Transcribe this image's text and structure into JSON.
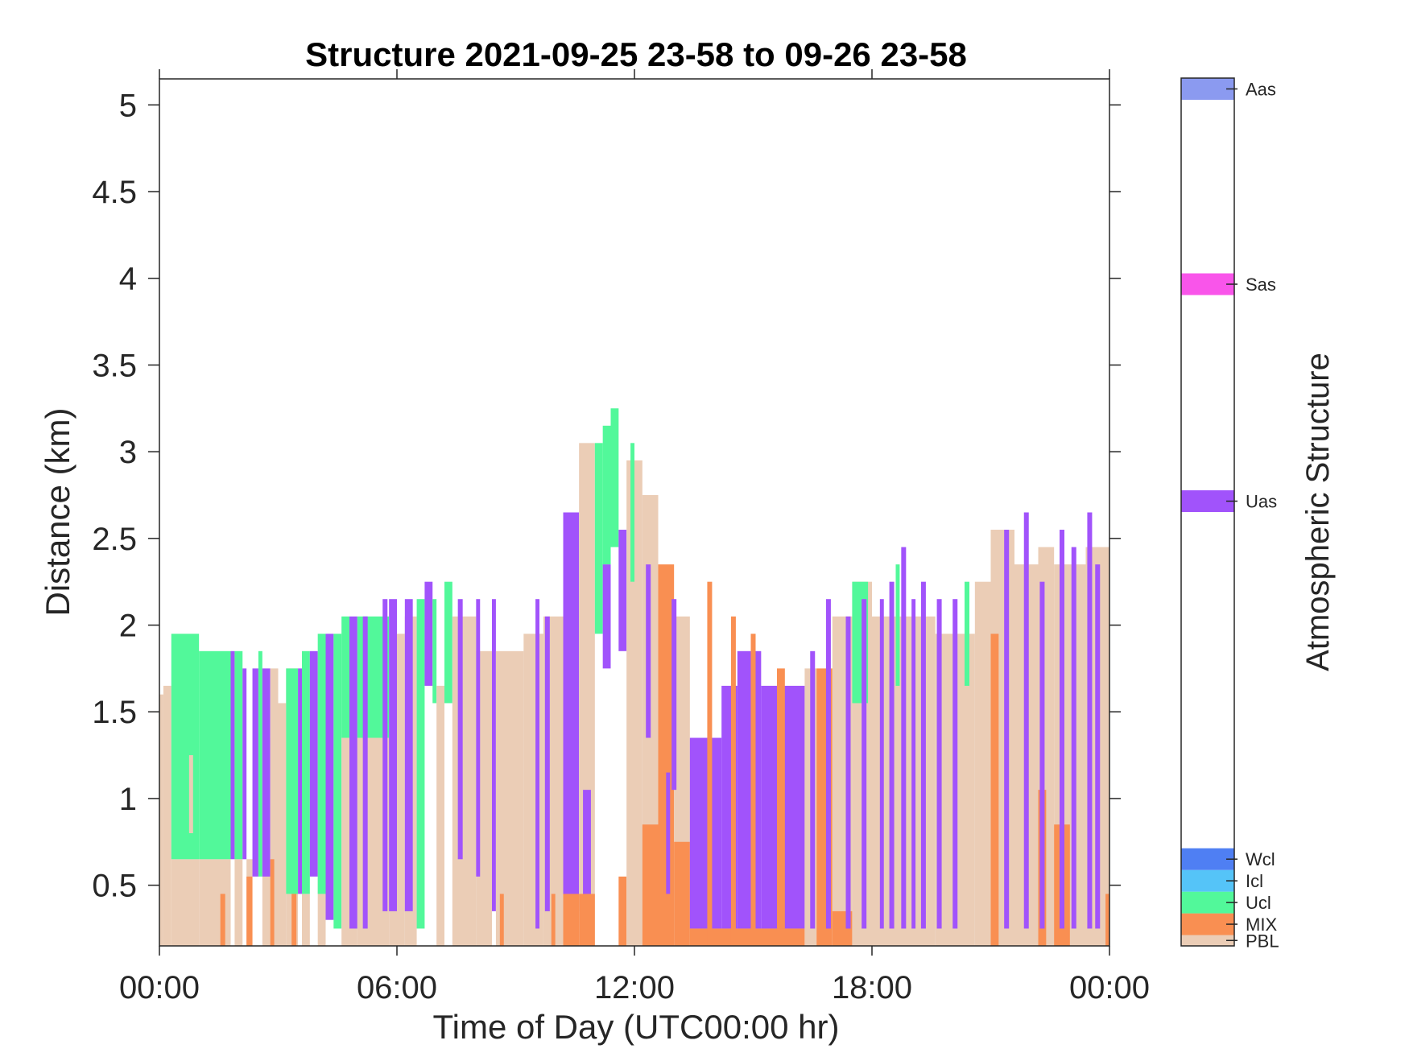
{
  "chart_data": {
    "type": "heatmap",
    "title": "Structure 2021-09-25 23-58 to 09-26 23-58",
    "xlabel": "Time of Day (UTC00:00 hr)",
    "ylabel": "Distance (km)",
    "colorbar_label": "Atmospheric Structure",
    "xlim_hours": [
      0,
      24
    ],
    "ylim_km": [
      0.15,
      5.15
    ],
    "x_ticks": [
      {
        "value": 0,
        "label": "00:00"
      },
      {
        "value": 6,
        "label": "06:00"
      },
      {
        "value": 12,
        "label": "12:00"
      },
      {
        "value": 18,
        "label": "18:00"
      },
      {
        "value": 24,
        "label": "00:00"
      }
    ],
    "y_ticks": [
      {
        "value": 0.5,
        "label": "0.5"
      },
      {
        "value": 1,
        "label": "1"
      },
      {
        "value": 1.5,
        "label": "1.5"
      },
      {
        "value": 2,
        "label": "2"
      },
      {
        "value": 2.5,
        "label": "2.5"
      },
      {
        "value": 3,
        "label": "3"
      },
      {
        "value": 3.5,
        "label": "3.5"
      },
      {
        "value": 4,
        "label": "4"
      },
      {
        "value": 4.5,
        "label": "4.5"
      },
      {
        "value": 5,
        "label": "5"
      }
    ],
    "classes": [
      {
        "code": "PBL",
        "color": "#ebcdb6",
        "legend_range": [
          0.0,
          0.1
        ]
      },
      {
        "code": "MIX",
        "color": "#f98f52",
        "legend_range": [
          0.1,
          0.3
        ]
      },
      {
        "code": "Ucl",
        "color": "#52f89a",
        "legend_range": [
          0.3,
          0.5
        ]
      },
      {
        "code": "Icl",
        "color": "#55c4f8",
        "legend_range": [
          0.5,
          0.7
        ]
      },
      {
        "code": "Wcl",
        "color": "#4f7ff3",
        "legend_range": [
          0.7,
          0.9
        ]
      },
      {
        "code": "Uas",
        "color": "#a153fb",
        "legend_range": [
          4.0,
          4.2
        ]
      },
      {
        "code": "Sas",
        "color": "#f955ea",
        "legend_range": [
          6.0,
          6.2
        ]
      },
      {
        "code": "Aas",
        "color": "#8b9af0",
        "legend_range": [
          7.8,
          8.0
        ]
      }
    ],
    "colorbar_range": [
      0,
      8
    ],
    "segments": [
      {
        "t0": 0.0,
        "t1": 0.1,
        "class": "PBL",
        "y0": 0.15,
        "y1": 1.6
      },
      {
        "t0": 0.1,
        "t1": 0.3,
        "class": "PBL",
        "y0": 0.15,
        "y1": 1.65
      },
      {
        "t0": 0.3,
        "t1": 0.6,
        "class": "PBL",
        "y0": 0.15,
        "y1": 0.65
      },
      {
        "t0": 0.3,
        "t1": 0.6,
        "class": "Ucl",
        "y0": 0.65,
        "y1": 1.95
      },
      {
        "t0": 0.6,
        "t1": 1.0,
        "class": "PBL",
        "y0": 0.15,
        "y1": 0.65
      },
      {
        "t0": 0.6,
        "t1": 1.0,
        "class": "Ucl",
        "y0": 0.65,
        "y1": 1.95
      },
      {
        "t0": 0.75,
        "t1": 0.85,
        "class": "PBL",
        "y0": 0.8,
        "y1": 1.25
      },
      {
        "t0": 1.0,
        "t1": 1.8,
        "class": "PBL",
        "y0": 0.15,
        "y1": 0.65
      },
      {
        "t0": 1.0,
        "t1": 1.8,
        "class": "Ucl",
        "y0": 0.65,
        "y1": 1.85
      },
      {
        "t0": 1.8,
        "t1": 1.9,
        "class": "Uas",
        "y0": 0.65,
        "y1": 1.85
      },
      {
        "t0": 1.9,
        "t1": 2.1,
        "class": "PBL",
        "y0": 0.15,
        "y1": 0.65
      },
      {
        "t0": 1.9,
        "t1": 2.1,
        "class": "Ucl",
        "y0": 0.65,
        "y1": 1.85
      },
      {
        "t0": 2.1,
        "t1": 2.2,
        "class": "Uas",
        "y0": 0.65,
        "y1": 1.75
      },
      {
        "t0": 2.2,
        "t1": 2.35,
        "class": "PBL",
        "y0": 0.15,
        "y1": 0.65
      },
      {
        "t0": 2.2,
        "t1": 2.35,
        "class": "MIX",
        "y0": 0.15,
        "y1": 0.55
      },
      {
        "t0": 2.35,
        "t1": 2.5,
        "class": "Uas",
        "y0": 0.55,
        "y1": 1.75
      },
      {
        "t0": 2.5,
        "t1": 2.6,
        "class": "Ucl",
        "y0": 0.55,
        "y1": 1.85
      },
      {
        "t0": 2.6,
        "t1": 2.8,
        "class": "PBL",
        "y0": 0.15,
        "y1": 1.35
      },
      {
        "t0": 2.6,
        "t1": 2.8,
        "class": "Uas",
        "y0": 0.55,
        "y1": 1.75
      },
      {
        "t0": 2.8,
        "t1": 3.0,
        "class": "PBL",
        "y0": 0.15,
        "y1": 1.75
      },
      {
        "t0": 2.8,
        "t1": 2.9,
        "class": "MIX",
        "y0": 0.15,
        "y1": 0.65
      },
      {
        "t0": 3.0,
        "t1": 3.2,
        "class": "PBL",
        "y0": 0.15,
        "y1": 1.55
      },
      {
        "t0": 3.2,
        "t1": 3.5,
        "class": "PBL",
        "y0": 0.15,
        "y1": 1.75
      },
      {
        "t0": 3.2,
        "t1": 3.5,
        "class": "Ucl",
        "y0": 0.45,
        "y1": 1.75
      },
      {
        "t0": 3.5,
        "t1": 3.6,
        "class": "Uas",
        "y0": 0.45,
        "y1": 1.75
      },
      {
        "t0": 3.6,
        "t1": 3.8,
        "class": "PBL",
        "y0": 0.15,
        "y1": 0.45
      },
      {
        "t0": 3.6,
        "t1": 3.8,
        "class": "Ucl",
        "y0": 0.45,
        "y1": 1.85
      },
      {
        "t0": 3.8,
        "t1": 4.0,
        "class": "Uas",
        "y0": 0.55,
        "y1": 1.85
      },
      {
        "t0": 4.0,
        "t1": 4.2,
        "class": "PBL",
        "y0": 0.15,
        "y1": 1.85
      },
      {
        "t0": 4.0,
        "t1": 4.2,
        "class": "Ucl",
        "y0": 0.45,
        "y1": 1.95
      },
      {
        "t0": 4.2,
        "t1": 4.4,
        "class": "Uas",
        "y0": 0.3,
        "y1": 1.95
      },
      {
        "t0": 4.4,
        "t1": 4.6,
        "class": "Ucl",
        "y0": 0.25,
        "y1": 1.95
      },
      {
        "t0": 4.6,
        "t1": 4.8,
        "class": "PBL",
        "y0": 0.15,
        "y1": 1.35
      },
      {
        "t0": 4.6,
        "t1": 4.8,
        "class": "Ucl",
        "y0": 1.35,
        "y1": 2.05
      },
      {
        "t0": 4.8,
        "t1": 5.0,
        "class": "PBL",
        "y0": 0.15,
        "y1": 1.35
      },
      {
        "t0": 4.8,
        "t1": 5.0,
        "class": "Uas",
        "y0": 0.25,
        "y1": 2.05
      },
      {
        "t0": 5.0,
        "t1": 5.8,
        "class": "PBL",
        "y0": 0.15,
        "y1": 1.35
      },
      {
        "t0": 5.0,
        "t1": 5.8,
        "class": "Ucl",
        "y0": 1.35,
        "y1": 2.05
      },
      {
        "t0": 5.8,
        "t1": 6.2,
        "class": "PBL",
        "y0": 0.15,
        "y1": 1.95
      },
      {
        "t0": 5.8,
        "t1": 6.0,
        "class": "Uas",
        "y0": 0.35,
        "y1": 2.15
      },
      {
        "t0": 6.2,
        "t1": 6.5,
        "class": "PBL",
        "y0": 0.15,
        "y1": 2.05
      },
      {
        "t0": 6.2,
        "t1": 6.4,
        "class": "Uas",
        "y0": 0.35,
        "y1": 2.15
      },
      {
        "t0": 6.5,
        "t1": 6.7,
        "class": "Ucl",
        "y0": 0.25,
        "y1": 2.15
      },
      {
        "t0": 6.7,
        "t1": 6.9,
        "class": "Uas",
        "y0": 1.65,
        "y1": 2.25
      },
      {
        "t0": 6.9,
        "t1": 7.0,
        "class": "Ucl",
        "y0": 1.55,
        "y1": 2.15
      },
      {
        "t0": 7.0,
        "t1": 7.2,
        "class": "PBL",
        "y0": 0.15,
        "y1": 1.65
      },
      {
        "t0": 7.2,
        "t1": 7.4,
        "class": "Ucl",
        "y0": 1.55,
        "y1": 2.25
      },
      {
        "t0": 7.4,
        "t1": 8.0,
        "class": "PBL",
        "y0": 0.15,
        "y1": 2.05
      },
      {
        "t0": 8.0,
        "t1": 8.4,
        "class": "PBL",
        "y0": 0.15,
        "y1": 1.85
      },
      {
        "t0": 8.0,
        "t1": 8.1,
        "class": "Uas",
        "y0": 0.55,
        "y1": 2.15
      },
      {
        "t0": 8.4,
        "t1": 8.5,
        "class": "Uas",
        "y0": 0.35,
        "y1": 2.15
      },
      {
        "t0": 8.5,
        "t1": 9.2,
        "class": "PBL",
        "y0": 0.15,
        "y1": 1.85
      },
      {
        "t0": 8.6,
        "t1": 8.7,
        "class": "MIX",
        "y0": 0.15,
        "y1": 0.45
      },
      {
        "t0": 9.2,
        "t1": 9.7,
        "class": "PBL",
        "y0": 0.15,
        "y1": 1.95
      },
      {
        "t0": 9.5,
        "t1": 9.6,
        "class": "Uas",
        "y0": 0.25,
        "y1": 2.15
      },
      {
        "t0": 9.7,
        "t1": 10.2,
        "class": "PBL",
        "y0": 0.15,
        "y1": 2.05
      },
      {
        "t0": 9.9,
        "t1": 10.0,
        "class": "MIX",
        "y0": 0.15,
        "y1": 0.45
      },
      {
        "t0": 10.2,
        "t1": 10.6,
        "class": "Uas",
        "y0": 0.35,
        "y1": 2.65
      },
      {
        "t0": 10.2,
        "t1": 10.6,
        "class": "MIX",
        "y0": 0.15,
        "y1": 0.45
      },
      {
        "t0": 10.6,
        "t1": 11.0,
        "class": "PBL",
        "y0": 0.15,
        "y1": 3.05
      },
      {
        "t0": 10.7,
        "t1": 10.9,
        "class": "Uas",
        "y0": 0.35,
        "y1": 1.05
      },
      {
        "t0": 10.6,
        "t1": 11.0,
        "class": "MIX",
        "y0": 0.15,
        "y1": 0.45
      },
      {
        "t0": 11.0,
        "t1": 11.2,
        "class": "Ucl",
        "y0": 1.95,
        "y1": 3.05
      },
      {
        "t0": 11.2,
        "t1": 11.4,
        "class": "Ucl",
        "y0": 2.35,
        "y1": 3.15
      },
      {
        "t0": 11.2,
        "t1": 11.4,
        "class": "Uas",
        "y0": 1.75,
        "y1": 2.35
      },
      {
        "t0": 11.4,
        "t1": 11.6,
        "class": "Ucl",
        "y0": 2.45,
        "y1": 3.25
      },
      {
        "t0": 11.6,
        "t1": 11.8,
        "class": "Uas",
        "y0": 1.85,
        "y1": 2.55
      },
      {
        "t0": 11.6,
        "t1": 11.8,
        "class": "MIX",
        "y0": 0.15,
        "y1": 0.55
      },
      {
        "t0": 11.8,
        "t1": 12.2,
        "class": "PBL",
        "y0": 0.15,
        "y1": 2.95
      },
      {
        "t0": 11.9,
        "t1": 12.0,
        "class": "Ucl",
        "y0": 2.25,
        "y1": 3.05
      },
      {
        "t0": 12.2,
        "t1": 12.6,
        "class": "PBL",
        "y0": 0.15,
        "y1": 2.75
      },
      {
        "t0": 12.2,
        "t1": 12.6,
        "class": "MIX",
        "y0": 0.15,
        "y1": 0.85
      },
      {
        "t0": 12.6,
        "t1": 13.0,
        "class": "MIX",
        "y0": 0.15,
        "y1": 2.35
      },
      {
        "t0": 12.8,
        "t1": 12.9,
        "class": "Uas",
        "y0": 0.45,
        "y1": 1.15
      },
      {
        "t0": 13.0,
        "t1": 13.4,
        "class": "PBL",
        "y0": 0.15,
        "y1": 2.05
      },
      {
        "t0": 13.0,
        "t1": 13.4,
        "class": "MIX",
        "y0": 0.15,
        "y1": 0.75
      },
      {
        "t0": 13.4,
        "t1": 14.2,
        "class": "Uas",
        "y0": 0.25,
        "y1": 1.35
      },
      {
        "t0": 14.2,
        "t1": 14.6,
        "class": "Uas",
        "y0": 0.25,
        "y1": 1.65
      },
      {
        "t0": 14.6,
        "t1": 15.2,
        "class": "Uas",
        "y0": 0.25,
        "y1": 1.85
      },
      {
        "t0": 15.2,
        "t1": 16.3,
        "class": "Uas",
        "y0": 0.25,
        "y1": 1.65
      },
      {
        "t0": 15.6,
        "t1": 15.8,
        "class": "MIX",
        "y0": 0.25,
        "y1": 1.75
      },
      {
        "t0": 13.4,
        "t1": 16.3,
        "class": "MIX",
        "y0": 0.15,
        "y1": 0.25
      },
      {
        "t0": 16.3,
        "t1": 16.6,
        "class": "PBL",
        "y0": 0.15,
        "y1": 1.75
      },
      {
        "t0": 16.6,
        "t1": 17.0,
        "class": "MIX",
        "y0": 0.15,
        "y1": 1.75
      },
      {
        "t0": 17.0,
        "t1": 17.5,
        "class": "PBL",
        "y0": 0.15,
        "y1": 2.05
      },
      {
        "t0": 17.0,
        "t1": 17.5,
        "class": "MIX",
        "y0": 0.15,
        "y1": 0.35
      },
      {
        "t0": 17.5,
        "t1": 18.0,
        "class": "PBL",
        "y0": 0.15,
        "y1": 2.25
      },
      {
        "t0": 17.5,
        "t1": 17.9,
        "class": "Ucl",
        "y0": 1.55,
        "y1": 2.25
      },
      {
        "t0": 18.0,
        "t1": 19.6,
        "class": "PBL",
        "y0": 0.15,
        "y1": 2.05
      },
      {
        "t0": 18.2,
        "t1": 18.3,
        "class": "Uas",
        "y0": 0.25,
        "y1": 2.15
      },
      {
        "t0": 18.6,
        "t1": 18.7,
        "class": "Ucl",
        "y0": 1.65,
        "y1": 2.35
      },
      {
        "t0": 19.0,
        "t1": 19.1,
        "class": "Uas",
        "y0": 0.25,
        "y1": 2.15
      },
      {
        "t0": 19.6,
        "t1": 20.6,
        "class": "PBL",
        "y0": 0.15,
        "y1": 1.95
      },
      {
        "t0": 20.6,
        "t1": 21.0,
        "class": "PBL",
        "y0": 0.15,
        "y1": 2.25
      },
      {
        "t0": 21.0,
        "t1": 21.6,
        "class": "PBL",
        "y0": 0.15,
        "y1": 2.55
      },
      {
        "t0": 21.0,
        "t1": 21.2,
        "class": "MIX",
        "y0": 0.15,
        "y1": 1.95
      },
      {
        "t0": 21.6,
        "t1": 22.2,
        "class": "PBL",
        "y0": 0.15,
        "y1": 2.35
      },
      {
        "t0": 22.2,
        "t1": 22.6,
        "class": "PBL",
        "y0": 0.15,
        "y1": 2.45
      },
      {
        "t0": 22.2,
        "t1": 22.4,
        "class": "MIX",
        "y0": 0.15,
        "y1": 1.05
      },
      {
        "t0": 22.6,
        "t1": 23.4,
        "class": "PBL",
        "y0": 0.15,
        "y1": 2.35
      },
      {
        "t0": 22.6,
        "t1": 23.0,
        "class": "MIX",
        "y0": 0.15,
        "y1": 0.85
      },
      {
        "t0": 23.4,
        "t1": 24.0,
        "class": "PBL",
        "y0": 0.15,
        "y1": 2.45
      },
      {
        "t0": 23.9,
        "t1": 24.0,
        "class": "MIX",
        "y0": 0.15,
        "y1": 0.45
      }
    ],
    "spikes": [
      {
        "t": 1.6,
        "class": "MIX",
        "y0": 0.15,
        "y1": 0.45
      },
      {
        "t": 3.4,
        "class": "MIX",
        "y0": 0.15,
        "y1": 0.45
      },
      {
        "t": 5.2,
        "class": "Uas",
        "y0": 0.25,
        "y1": 2.05
      },
      {
        "t": 5.7,
        "class": "Uas",
        "y0": 0.35,
        "y1": 2.15
      },
      {
        "t": 7.6,
        "class": "Uas",
        "y0": 0.65,
        "y1": 2.15
      },
      {
        "t": 9.8,
        "class": "Uas",
        "y0": 0.35,
        "y1": 2.05
      },
      {
        "t": 12.35,
        "class": "Uas",
        "y0": 1.35,
        "y1": 2.35
      },
      {
        "t": 13.0,
        "class": "Uas",
        "y0": 1.05,
        "y1": 2.15
      },
      {
        "t": 13.9,
        "class": "MIX",
        "y0": 0.15,
        "y1": 2.25
      },
      {
        "t": 14.5,
        "class": "MIX",
        "y0": 0.15,
        "y1": 2.05
      },
      {
        "t": 15.0,
        "class": "MIX",
        "y0": 0.15,
        "y1": 1.95
      },
      {
        "t": 16.5,
        "class": "Uas",
        "y0": 0.25,
        "y1": 1.85
      },
      {
        "t": 16.9,
        "class": "Uas",
        "y0": 0.25,
        "y1": 2.15
      },
      {
        "t": 17.4,
        "class": "Uas",
        "y0": 0.25,
        "y1": 2.05
      },
      {
        "t": 17.8,
        "class": "Uas",
        "y0": 0.25,
        "y1": 2.15
      },
      {
        "t": 18.5,
        "class": "Uas",
        "y0": 0.25,
        "y1": 2.25
      },
      {
        "t": 18.8,
        "class": "Uas",
        "y0": 0.25,
        "y1": 2.45
      },
      {
        "t": 19.3,
        "class": "Uas",
        "y0": 0.25,
        "y1": 2.25
      },
      {
        "t": 19.7,
        "class": "Uas",
        "y0": 0.25,
        "y1": 2.15
      },
      {
        "t": 20.1,
        "class": "Uas",
        "y0": 0.25,
        "y1": 2.15
      },
      {
        "t": 20.4,
        "class": "Ucl",
        "y0": 1.65,
        "y1": 2.25
      },
      {
        "t": 21.4,
        "class": "Uas",
        "y0": 0.25,
        "y1": 2.55
      },
      {
        "t": 21.9,
        "class": "Uas",
        "y0": 0.25,
        "y1": 2.65
      },
      {
        "t": 22.3,
        "class": "Uas",
        "y0": 0.25,
        "y1": 2.25
      },
      {
        "t": 22.8,
        "class": "Uas",
        "y0": 0.25,
        "y1": 2.55
      },
      {
        "t": 23.1,
        "class": "Uas",
        "y0": 0.25,
        "y1": 2.45
      },
      {
        "t": 23.5,
        "class": "Uas",
        "y0": 0.25,
        "y1": 2.65
      },
      {
        "t": 23.7,
        "class": "Uas",
        "y0": 0.25,
        "y1": 2.35
      }
    ]
  }
}
